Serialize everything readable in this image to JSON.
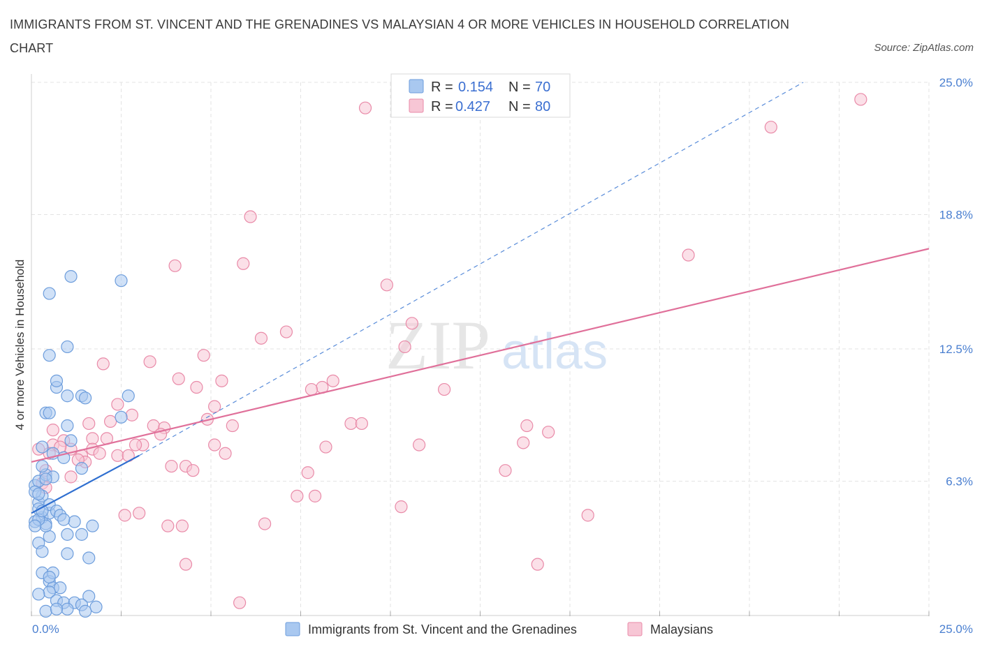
{
  "title": "IMMIGRANTS FROM ST. VINCENT AND THE GRENADINES VS MALAYSIAN 4 OR MORE VEHICLES IN HOUSEHOLD CORRELATION CHART",
  "source": "Source: ZipAtlas.com",
  "watermark": {
    "zip": "ZIP",
    "atlas": "atlas"
  },
  "colors": {
    "blue_fill": "#a9c8f0",
    "blue_stroke": "#6d9ddc",
    "blue_line": "#2f6fd0",
    "pink_fill": "#f7c6d5",
    "pink_stroke": "#e98aa8",
    "pink_line": "#e0709a",
    "grid": "#e3e3e3",
    "axis_label": "#4a7fd0"
  },
  "legend": {
    "rows": [
      {
        "r_label": "R =",
        "r_value": "0.154",
        "n_label": "N =",
        "n_value": "70"
      },
      {
        "r_label": "R =",
        "r_value": "0.427",
        "n_label": "N =",
        "n_value": "80"
      }
    ]
  },
  "chart_data": {
    "type": "scatter",
    "title": "IMMIGRANTS FROM ST. VINCENT AND THE GRENADINES VS MALAYSIAN 4 OR MORE VEHICLES IN HOUSEHOLD CORRELATION CHART",
    "xlabel": "",
    "ylabel": "4 or more Vehicles in Household",
    "xlim": [
      0,
      25
    ],
    "ylim": [
      0,
      25
    ],
    "x_tick_labels": [
      "0.0%",
      "25.0%"
    ],
    "y_ticks": [
      6.3,
      12.5,
      18.8,
      25.0
    ],
    "y_tick_labels": [
      "6.3%",
      "12.5%",
      "18.8%",
      "25.0%"
    ],
    "grid": true,
    "legend_position": "top-center",
    "series": [
      {
        "name": "Immigrants from St. Vincent and the Grenadines",
        "color": "#a9c8f0",
        "points": [
          [
            0.2,
            5.3
          ],
          [
            0.3,
            4.6
          ],
          [
            0.1,
            4.4
          ],
          [
            0.4,
            4.3
          ],
          [
            0.2,
            5.0
          ],
          [
            0.5,
            4.8
          ],
          [
            0.3,
            5.6
          ],
          [
            0.1,
            6.1
          ],
          [
            0.2,
            6.3
          ],
          [
            0.4,
            6.6
          ],
          [
            0.6,
            6.5
          ],
          [
            0.3,
            7.0
          ],
          [
            0.1,
            5.8
          ],
          [
            0.5,
            5.2
          ],
          [
            0.7,
            4.9
          ],
          [
            0.8,
            4.7
          ],
          [
            1.2,
            4.4
          ],
          [
            1.4,
            3.8
          ],
          [
            1.0,
            3.8
          ],
          [
            0.5,
            3.7
          ],
          [
            0.2,
            3.4
          ],
          [
            0.3,
            3.0
          ],
          [
            1.0,
            2.9
          ],
          [
            1.6,
            2.7
          ],
          [
            0.3,
            2.0
          ],
          [
            0.5,
            1.6
          ],
          [
            0.6,
            1.3
          ],
          [
            0.8,
            1.3
          ],
          [
            0.5,
            1.1
          ],
          [
            0.2,
            1.0
          ],
          [
            1.6,
            0.9
          ],
          [
            0.7,
            0.7
          ],
          [
            0.9,
            0.6
          ],
          [
            1.2,
            0.6
          ],
          [
            1.4,
            0.5
          ],
          [
            1.8,
            0.4
          ],
          [
            0.4,
            0.2
          ],
          [
            1.0,
            0.3
          ],
          [
            1.5,
            0.2
          ],
          [
            0.7,
            0.3
          ],
          [
            0.5,
            15.1
          ],
          [
            0.5,
            12.2
          ],
          [
            1.0,
            12.6
          ],
          [
            2.5,
            15.7
          ],
          [
            1.1,
            15.9
          ],
          [
            0.7,
            10.7
          ],
          [
            0.7,
            11.0
          ],
          [
            1.0,
            10.3
          ],
          [
            1.4,
            10.3
          ],
          [
            1.5,
            10.2
          ],
          [
            2.7,
            10.3
          ],
          [
            0.4,
            9.5
          ],
          [
            0.5,
            9.5
          ],
          [
            1.0,
            8.9
          ],
          [
            2.5,
            9.3
          ],
          [
            1.1,
            8.2
          ],
          [
            0.3,
            7.9
          ],
          [
            0.9,
            7.4
          ],
          [
            1.4,
            6.9
          ],
          [
            1.7,
            4.2
          ],
          [
            0.4,
            4.2
          ],
          [
            0.2,
            4.5
          ],
          [
            0.6,
            2.0
          ],
          [
            0.5,
            1.8
          ],
          [
            0.3,
            4.9
          ],
          [
            0.2,
            5.7
          ],
          [
            0.4,
            6.4
          ],
          [
            0.6,
            7.6
          ],
          [
            0.9,
            4.5
          ],
          [
            0.1,
            4.2
          ]
        ]
      },
      {
        "name": "Malaysians",
        "color": "#f7c6d5",
        "points": [
          [
            9.3,
            23.8
          ],
          [
            23.1,
            24.2
          ],
          [
            20.6,
            22.9
          ],
          [
            6.1,
            18.7
          ],
          [
            5.9,
            16.5
          ],
          [
            4.0,
            16.4
          ],
          [
            18.3,
            16.9
          ],
          [
            9.9,
            15.5
          ],
          [
            10.6,
            13.7
          ],
          [
            7.1,
            13.3
          ],
          [
            6.4,
            13.0
          ],
          [
            10.4,
            12.6
          ],
          [
            4.8,
            12.2
          ],
          [
            2.0,
            11.8
          ],
          [
            3.3,
            11.9
          ],
          [
            4.1,
            11.1
          ],
          [
            5.3,
            11.0
          ],
          [
            8.4,
            11.0
          ],
          [
            8.1,
            10.7
          ],
          [
            7.8,
            10.6
          ],
          [
            4.6,
            10.7
          ],
          [
            11.5,
            10.6
          ],
          [
            5.1,
            9.8
          ],
          [
            2.4,
            9.9
          ],
          [
            2.8,
            9.4
          ],
          [
            2.2,
            9.1
          ],
          [
            1.6,
            9.0
          ],
          [
            3.4,
            8.9
          ],
          [
            3.7,
            8.8
          ],
          [
            4.9,
            9.2
          ],
          [
            5.6,
            8.9
          ],
          [
            8.9,
            9.0
          ],
          [
            9.2,
            9.0
          ],
          [
            13.8,
            8.9
          ],
          [
            14.4,
            8.6
          ],
          [
            0.6,
            8.7
          ],
          [
            1.7,
            8.3
          ],
          [
            2.1,
            8.3
          ],
          [
            3.6,
            8.5
          ],
          [
            0.9,
            8.2
          ],
          [
            3.1,
            8.0
          ],
          [
            5.1,
            8.0
          ],
          [
            8.2,
            7.9
          ],
          [
            10.8,
            8.0
          ],
          [
            13.7,
            8.1
          ],
          [
            0.6,
            8.0
          ],
          [
            1.1,
            7.8
          ],
          [
            1.7,
            7.8
          ],
          [
            2.4,
            7.5
          ],
          [
            1.4,
            7.5
          ],
          [
            1.5,
            7.2
          ],
          [
            2.7,
            7.5
          ],
          [
            5.4,
            7.6
          ],
          [
            0.5,
            7.6
          ],
          [
            0.2,
            7.8
          ],
          [
            3.9,
            7.0
          ],
          [
            4.3,
            7.0
          ],
          [
            4.5,
            6.8
          ],
          [
            7.7,
            6.7
          ],
          [
            13.2,
            6.8
          ],
          [
            1.1,
            6.5
          ],
          [
            0.3,
            6.2
          ],
          [
            0.4,
            6.0
          ],
          [
            7.4,
            5.6
          ],
          [
            7.9,
            5.6
          ],
          [
            10.3,
            5.1
          ],
          [
            3.0,
            4.8
          ],
          [
            2.6,
            4.7
          ],
          [
            15.5,
            4.7
          ],
          [
            3.8,
            4.2
          ],
          [
            4.2,
            4.2
          ],
          [
            6.5,
            4.3
          ],
          [
            4.3,
            2.4
          ],
          [
            14.1,
            2.4
          ],
          [
            5.8,
            0.6
          ],
          [
            1.3,
            7.3
          ],
          [
            2.9,
            8.0
          ],
          [
            0.8,
            7.9
          ],
          [
            1.9,
            7.6
          ],
          [
            0.4,
            6.8
          ]
        ]
      }
    ],
    "trendlines": [
      {
        "series": "Immigrants from St. Vincent and the Grenadines",
        "style": "solid",
        "from": [
          0,
          4.8
        ],
        "to": [
          3.0,
          7.5
        ]
      },
      {
        "series": "Immigrants from St. Vincent and the Grenadines",
        "style": "dashed",
        "from": [
          3.0,
          7.5
        ],
        "to": [
          21.5,
          25.0
        ]
      },
      {
        "series": "Malaysians",
        "style": "solid",
        "from": [
          0,
          7.2
        ],
        "to": [
          25.0,
          17.2
        ]
      }
    ]
  }
}
